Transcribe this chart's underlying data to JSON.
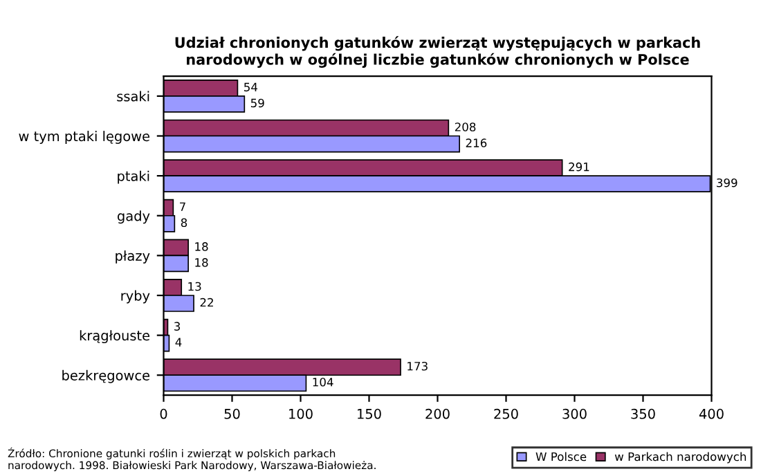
{
  "chart_data": {
    "type": "bar",
    "orientation": "horizontal",
    "title": "Udział chronionych gatunków zwierząt występujących w parkach\nnarodowych w ogólnej liczbie gatunków chronionych w Polsce",
    "categories": [
      "ssaki",
      "w tym ptaki lęgowe",
      "ptaki",
      "gady",
      "płazy",
      "ryby",
      "krągłouste",
      "bezkręgowce"
    ],
    "series": [
      {
        "name": "w Parkach narodowych",
        "color": "#993366",
        "values": [
          54,
          208,
          291,
          7,
          18,
          13,
          3,
          173
        ]
      },
      {
        "name": "W Polsce",
        "color": "#9999ff",
        "values": [
          59,
          216,
          399,
          8,
          18,
          22,
          4,
          104
        ]
      }
    ],
    "xlim": [
      0,
      400
    ],
    "xticks": [
      0,
      50,
      100,
      150,
      200,
      250,
      300,
      350,
      400
    ],
    "data_labels": true,
    "grid": false,
    "legend": "bottom right",
    "annotations": [
      "Źródło: Chronione gatunki roślin i zwierząt w polskich parkach\nnarodowych. 1998. Białowieski Park Narodowy, Warszawa-Białowieża."
    ]
  }
}
